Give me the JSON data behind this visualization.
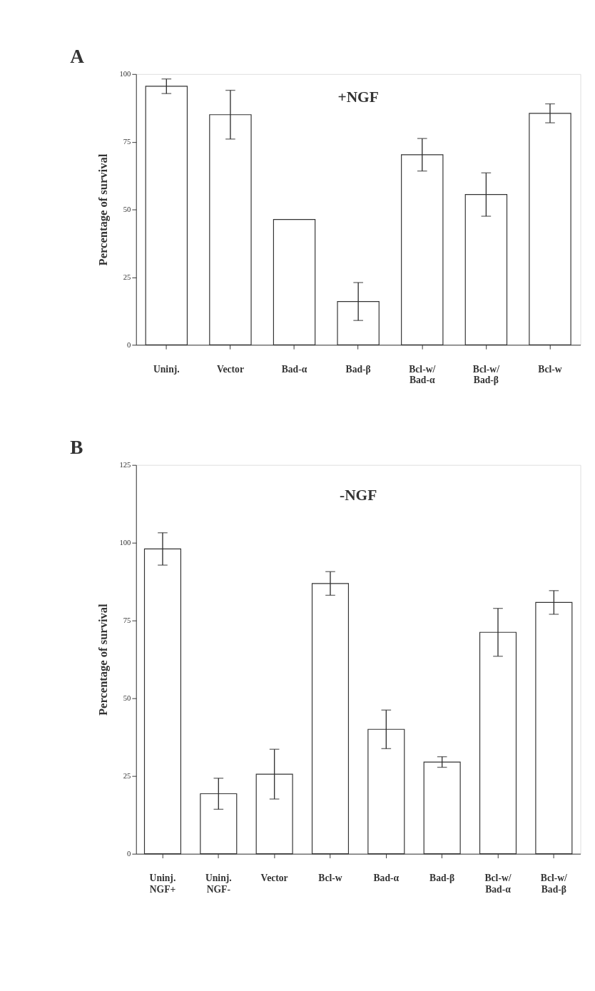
{
  "chart_data": [
    {
      "type": "bar",
      "title": "+NGF",
      "ylabel": "Percentage of survival",
      "annotations": [
        "A"
      ],
      "color": "#ffffff",
      "categories": [
        "Uninj.",
        "Vector",
        "Bad-α",
        "Bad-β",
        "Bcl-w/\nBad-α",
        "Bcl-w/\nBad-β",
        "Bcl-w"
      ],
      "values": [
        95.5,
        85,
        46.3,
        16,
        70.2,
        55.5,
        85.5
      ],
      "errors": [
        2.7,
        9,
        null,
        7,
        6,
        8,
        3.5
      ],
      "ylim": [
        0,
        100
      ],
      "yticks": [
        0,
        25,
        50,
        75,
        100
      ]
    },
    {
      "type": "bar",
      "title": "-NGF",
      "ylabel": "Percentage of survival",
      "annotations": [
        "B"
      ],
      "color": "#ffffff",
      "categories": [
        "Uninj.\nNGF+",
        "Uninj.\nNGF-",
        "Vector",
        "Bcl-w",
        "Bad-α",
        "Bad-β",
        "Bcl-w/\nBad-α",
        "Bcl-w/\nBad-β"
      ],
      "values": [
        98,
        19.3,
        25.6,
        86.9,
        40,
        29.5,
        71.2,
        80.8
      ],
      "errors": [
        5.2,
        5,
        8,
        3.8,
        6.2,
        1.7,
        7.7,
        3.8
      ],
      "ylim": [
        0,
        125
      ],
      "yticks": [
        0,
        25,
        50,
        75,
        100,
        125
      ]
    }
  ]
}
